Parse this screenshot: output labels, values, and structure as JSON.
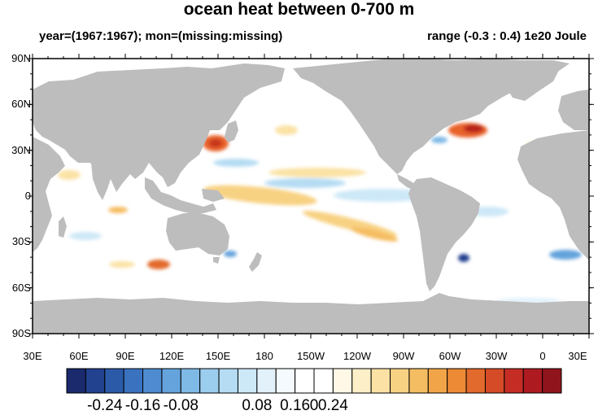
{
  "title": "ocean heat between 0-700 m",
  "subtitle_left": "year=(1967:1967); mon=(missing:missing)",
  "subtitle_right": "range (-0.3 : 0.4) 1e20 Joule",
  "lat_labels": [
    "90N",
    "60N",
    "30N",
    "0",
    "30S",
    "60S",
    "90S"
  ],
  "lon_labels": [
    "30E",
    "60E",
    "90E",
    "120E",
    "150E",
    "180",
    "150W",
    "120W",
    "90W",
    "60W",
    "30W",
    "0",
    "30E"
  ],
  "colorbar": {
    "colors": [
      "#1a2a6c",
      "#22418f",
      "#2b5aa8",
      "#3b72c0",
      "#4e8bd0",
      "#64a3dc",
      "#7fb9e6",
      "#9bcdee",
      "#b5dcf3",
      "#cde8f7",
      "#e2f1fa",
      "#f4fafd",
      "#ffffff",
      "#ffffff",
      "#fff8e6",
      "#fdefc8",
      "#fbe2a4",
      "#f8d283",
      "#f5bd62",
      "#f2a548",
      "#ec8a35",
      "#e26a2c",
      "#d64b27",
      "#c52d24",
      "#ad1b21",
      "#8f141c"
    ],
    "tick_labels": [
      "-0.24",
      "-0.16",
      "-0.08",
      "0",
      "0.08",
      "0.16",
      "0.24"
    ],
    "tick_values": [
      -0.24,
      -0.16,
      -0.08,
      0,
      0.08,
      0.16,
      0.24
    ]
  },
  "colors": {
    "land": "#bdbdbd",
    "ocean": "#ffffff",
    "frame": "#000000"
  }
}
